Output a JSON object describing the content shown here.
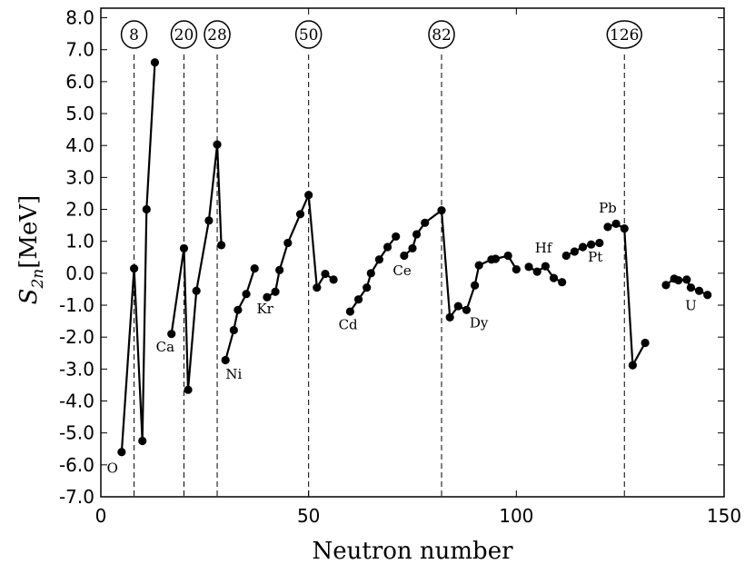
{
  "chart_data": {
    "type": "line",
    "xlabel": "Neutron number",
    "ylabel_main": "S",
    "ylabel_sub": "2n",
    "ylabel_unit": "[MeV]",
    "xlim": [
      0,
      150
    ],
    "ylim": [
      -7,
      8.3
    ],
    "xticks": [
      0,
      50,
      100,
      150
    ],
    "xtick_labels": [
      "0",
      "50",
      "100",
      "150"
    ],
    "yticks": [
      -7,
      -6,
      -5,
      -4,
      -3,
      -2,
      -1,
      0,
      1,
      2,
      3,
      4,
      5,
      6,
      7,
      8
    ],
    "ytick_labels": [
      "-7.0",
      "-6.0",
      "-5.0",
      "-4.0",
      "-3.0",
      "-2.0",
      "-1.0",
      "0.0",
      "1.0",
      "2.0",
      "3.0",
      "4.0",
      "5.0",
      "6.0",
      "7.0",
      "8.0"
    ],
    "magic_numbers": [
      8,
      20,
      28,
      50,
      82,
      126
    ],
    "magic_labels": [
      "8",
      "20",
      "28",
      "50",
      "82",
      "126"
    ],
    "series": [
      {
        "points": [
          [
            5,
            -5.6
          ],
          [
            8,
            0.15
          ],
          [
            10,
            -5.25
          ],
          [
            11,
            2.0
          ],
          [
            13,
            6.6
          ]
        ]
      },
      {
        "points": [
          [
            17,
            -1.9
          ],
          [
            20,
            0.78
          ],
          [
            21,
            -3.65
          ],
          [
            23,
            -0.55
          ],
          [
            26,
            1.65
          ],
          [
            28,
            4.03
          ],
          [
            29,
            0.88
          ]
        ]
      },
      {
        "points": [
          [
            30,
            -2.72
          ],
          [
            32,
            -1.78
          ],
          [
            33,
            -1.15
          ],
          [
            35,
            -0.65
          ],
          [
            37,
            0.15
          ]
        ]
      },
      {
        "points": [
          [
            40,
            -0.75
          ],
          [
            42,
            -0.58
          ],
          [
            43,
            0.1
          ],
          [
            45,
            0.95
          ],
          [
            48,
            1.85
          ],
          [
            50,
            2.45
          ],
          [
            52,
            -0.45
          ],
          [
            54,
            -0.02
          ],
          [
            56,
            -0.2
          ]
        ]
      },
      {
        "points": [
          [
            60,
            -1.2
          ],
          [
            62,
            -0.82
          ],
          [
            64,
            -0.45
          ],
          [
            65,
            0.0
          ],
          [
            67,
            0.43
          ],
          [
            69,
            0.82
          ],
          [
            71,
            1.15
          ]
        ]
      },
      {
        "points": [
          [
            73,
            0.55
          ],
          [
            75,
            0.78
          ],
          [
            76,
            1.22
          ],
          [
            78,
            1.58
          ],
          [
            82,
            1.97
          ],
          [
            84,
            -1.38
          ],
          [
            86,
            -1.03
          ],
          [
            88,
            -1.15
          ],
          [
            90,
            -0.38
          ],
          [
            91,
            0.25
          ],
          [
            94,
            0.43
          ],
          [
            95,
            0.45
          ],
          [
            98,
            0.55
          ],
          [
            100,
            0.12
          ]
        ]
      },
      {
        "points": [
          [
            103,
            0.2
          ],
          [
            105,
            0.05
          ],
          [
            107,
            0.22
          ],
          [
            109,
            -0.15
          ],
          [
            111,
            -0.28
          ]
        ]
      },
      {
        "points": [
          [
            112,
            0.55
          ],
          [
            114,
            0.68
          ],
          [
            116,
            0.82
          ],
          [
            118,
            0.9
          ],
          [
            120,
            0.95
          ]
        ]
      },
      {
        "points": [
          [
            122,
            1.45
          ],
          [
            124,
            1.55
          ],
          [
            126,
            1.4
          ],
          [
            128,
            -2.88
          ],
          [
            131,
            -2.18
          ]
        ]
      },
      {
        "points": [
          [
            136,
            -0.37
          ],
          [
            138,
            -0.17
          ],
          [
            139,
            -0.22
          ],
          [
            141,
            -0.2
          ],
          [
            142,
            -0.45
          ],
          [
            144,
            -0.55
          ],
          [
            146,
            -0.68
          ]
        ]
      }
    ],
    "labels": [
      {
        "text": "O",
        "x": 2.8,
        "y": -6.25
      },
      {
        "text": "Ca",
        "x": 15.5,
        "y": -2.45
      },
      {
        "text": "Ni",
        "x": 32.0,
        "y": -3.3
      },
      {
        "text": "Kr",
        "x": 39.5,
        "y": -1.25
      },
      {
        "text": "Cd",
        "x": 59.5,
        "y": -1.75
      },
      {
        "text": "Ce",
        "x": 72.5,
        "y": -0.06
      },
      {
        "text": "Dy",
        "x": 91.0,
        "y": -1.7
      },
      {
        "text": "Hf",
        "x": 106.5,
        "y": 0.65
      },
      {
        "text": "Pt",
        "x": 119.0,
        "y": 0.37
      },
      {
        "text": "Pb",
        "x": 122.0,
        "y": 1.9
      },
      {
        "text": "U",
        "x": 142.0,
        "y": -1.15
      }
    ],
    "grid": false,
    "legend": "none"
  }
}
